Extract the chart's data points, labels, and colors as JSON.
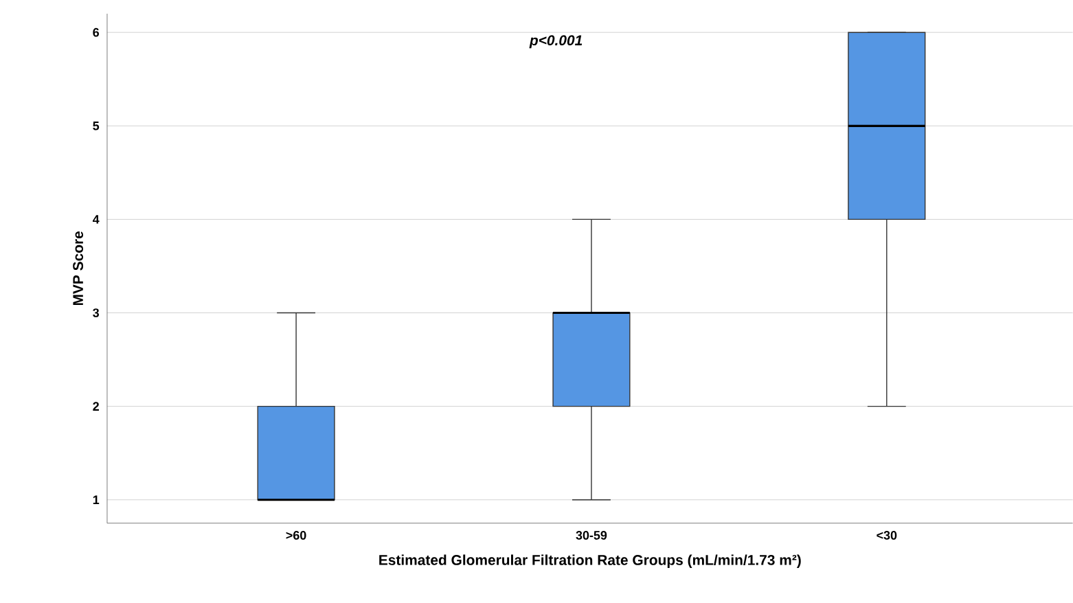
{
  "chart_data": {
    "type": "box",
    "xlabel": "Estimated Glomerular Filtration Rate Groups (mL/min/1.73 m²)",
    "ylabel": "MVP Score",
    "categories": [
      ">60",
      "30-59",
      "<30"
    ],
    "boxes": [
      {
        "low": 1,
        "q1": 1,
        "median": 1,
        "q3": 2,
        "high": 3
      },
      {
        "low": 1,
        "q1": 2,
        "median": 3,
        "q3": 3,
        "high": 4
      },
      {
        "low": 2,
        "q1": 4,
        "median": 5,
        "q3": 6,
        "high": 6
      }
    ],
    "color": "#5596e3",
    "ylim": [
      0.75,
      6.2
    ],
    "yticks": [
      1,
      2,
      3,
      4,
      5,
      6
    ],
    "grid": "y",
    "annotations": [
      "p<0.001"
    ]
  }
}
